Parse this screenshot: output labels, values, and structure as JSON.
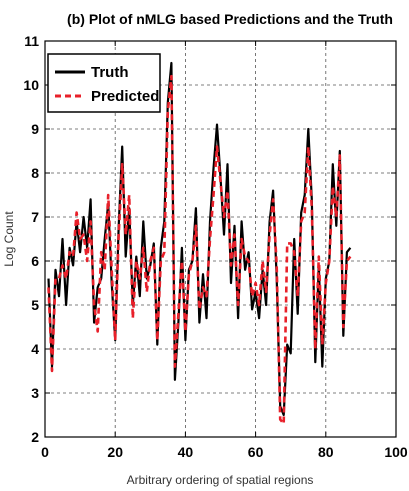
{
  "chart_data": {
    "type": "line",
    "title": "(b) Plot of nMLG based Predictions and the Truth",
    "xlabel": "Arbitrary ordering of spatial regions",
    "ylabel": "Log Count",
    "xlim": [
      0,
      100
    ],
    "ylim": [
      2,
      11
    ],
    "xticks": [
      "0",
      "20",
      "40",
      "60",
      "80",
      "100"
    ],
    "yticks": [
      "2",
      "3",
      "4",
      "5",
      "6",
      "7",
      "8",
      "9",
      "10",
      "11"
    ],
    "grid": true,
    "legend_position": "top-left",
    "x": [
      1,
      2,
      3,
      4,
      5,
      6,
      7,
      8,
      9,
      10,
      11,
      12,
      13,
      14,
      15,
      16,
      17,
      18,
      19,
      20,
      21,
      22,
      23,
      24,
      25,
      26,
      27,
      28,
      29,
      30,
      31,
      32,
      33,
      34,
      35,
      36,
      37,
      38,
      39,
      40,
      41,
      42,
      43,
      44,
      45,
      46,
      47,
      48,
      49,
      50,
      51,
      52,
      53,
      54,
      55,
      56,
      57,
      58,
      59,
      60,
      61,
      62,
      63,
      64,
      65,
      66,
      67,
      68,
      69,
      70,
      71,
      72,
      73,
      74,
      75,
      76,
      77,
      78,
      79,
      80,
      81,
      82,
      83,
      84,
      85,
      86,
      87
    ],
    "series": [
      {
        "name": "Truth",
        "color": "#000000",
        "style": "solid",
        "values": [
          5.6,
          3.6,
          5.8,
          5.2,
          6.5,
          5.0,
          6.3,
          5.9,
          6.9,
          6.2,
          7.0,
          6.3,
          7.4,
          4.6,
          5.4,
          5.6,
          6.5,
          7.3,
          5.5,
          4.2,
          6.8,
          8.6,
          6.1,
          7.2,
          5.0,
          6.1,
          5.2,
          6.9,
          5.6,
          5.9,
          6.4,
          4.1,
          6.3,
          6.9,
          9.6,
          10.5,
          3.3,
          4.6,
          6.3,
          4.2,
          5.8,
          6.0,
          7.2,
          4.6,
          5.7,
          4.7,
          6.9,
          8.1,
          9.1,
          7.9,
          6.6,
          8.2,
          5.5,
          6.8,
          4.7,
          6.9,
          5.8,
          6.2,
          4.9,
          5.3,
          4.7,
          5.8,
          5.0,
          6.9,
          7.6,
          5.6,
          2.7,
          2.5,
          4.1,
          3.9,
          6.5,
          4.8,
          7.1,
          7.5,
          9.0,
          7.4,
          3.7,
          5.9,
          3.6,
          5.6,
          6.0,
          8.2,
          6.8,
          8.5,
          4.3,
          6.2,
          6.3
        ]
      },
      {
        "name": "Predicted",
        "color": "#e8202a",
        "style": "dashed",
        "values": [
          5.4,
          3.5,
          5.6,
          5.6,
          5.9,
          5.6,
          6.2,
          6.1,
          7.1,
          6.5,
          6.6,
          6.0,
          6.9,
          5.0,
          4.4,
          6.2,
          5.8,
          7.5,
          5.8,
          4.2,
          6.6,
          8.2,
          6.6,
          7.5,
          4.7,
          6.0,
          5.6,
          6.3,
          5.3,
          6.0,
          6.3,
          4.2,
          6.0,
          6.2,
          9.4,
          10.2,
          3.6,
          4.8,
          6.0,
          4.4,
          5.7,
          6.0,
          6.8,
          4.9,
          5.4,
          5.2,
          6.5,
          7.5,
          8.6,
          7.8,
          7.0,
          7.6,
          5.9,
          6.6,
          5.0,
          6.5,
          6.1,
          6.0,
          5.2,
          5.5,
          5.0,
          6.0,
          5.3,
          6.6,
          7.4,
          5.9,
          2.4,
          2.3,
          6.4,
          6.4,
          6.2,
          5.2,
          6.9,
          7.1,
          8.6,
          7.2,
          4.0,
          6.1,
          4.1,
          5.5,
          6.0,
          7.7,
          7.0,
          8.4,
          4.5,
          6.0,
          6.1
        ]
      }
    ]
  }
}
